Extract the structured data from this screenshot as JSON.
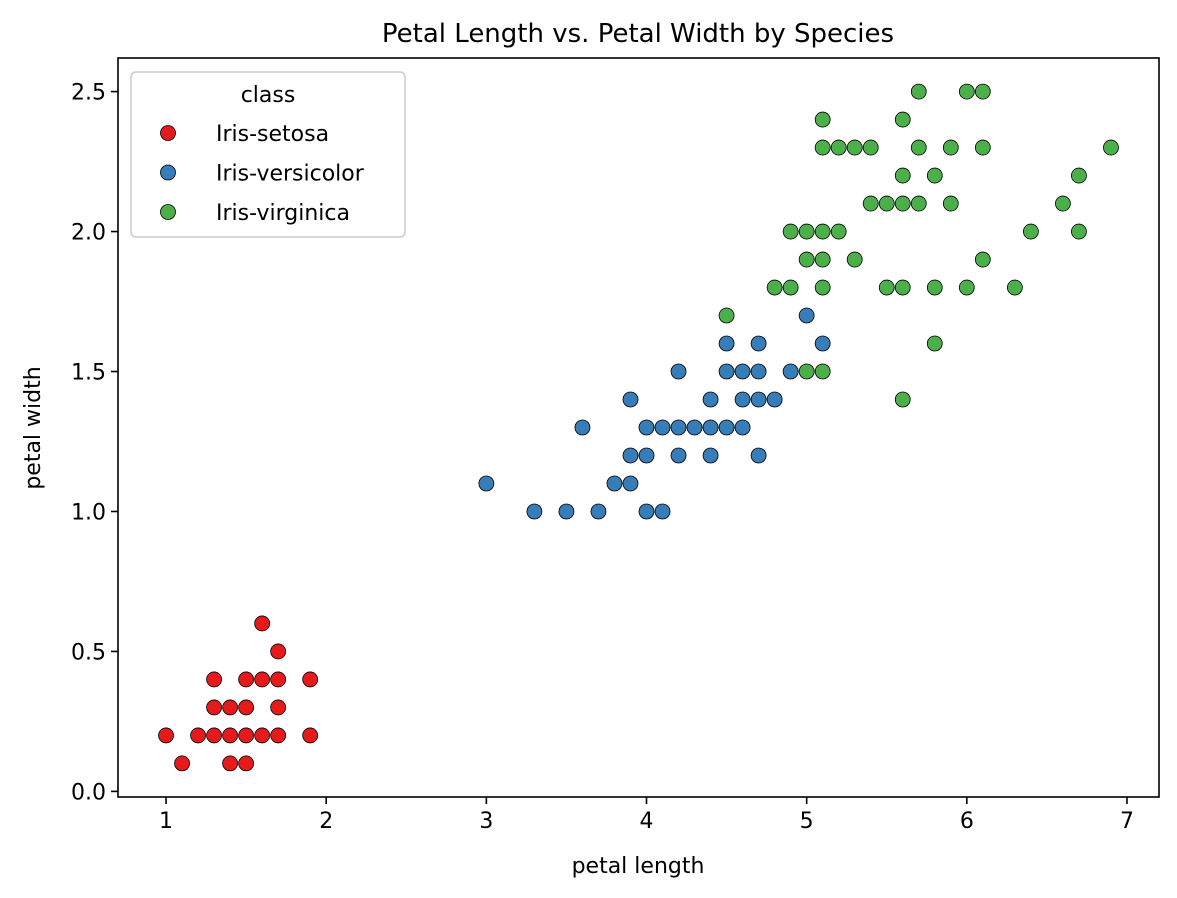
{
  "chart_data": {
    "type": "scatter",
    "title": "Petal Length vs. Petal Width by Species",
    "xlabel": "petal length",
    "ylabel": "petal width",
    "xlim": [
      0.7,
      7.2
    ],
    "ylim": [
      -0.02,
      2.62
    ],
    "xticks": [
      1,
      2,
      3,
      4,
      5,
      6,
      7
    ],
    "xtick_labels": [
      "1",
      "2",
      "3",
      "4",
      "5",
      "6",
      "7"
    ],
    "yticks": [
      0.0,
      0.5,
      1.0,
      1.5,
      2.0,
      2.5
    ],
    "ytick_labels": [
      "0.0",
      "0.5",
      "1.0",
      "1.5",
      "2.0",
      "2.5"
    ],
    "grid": false,
    "legend": {
      "title": "class",
      "placement": "top-left"
    },
    "series": [
      {
        "name": "Iris-setosa",
        "color": "#e41a1c",
        "points": [
          [
            1.0,
            0.2
          ],
          [
            1.1,
            0.1
          ],
          [
            1.2,
            0.2
          ],
          [
            1.3,
            0.2
          ],
          [
            1.3,
            0.3
          ],
          [
            1.3,
            0.4
          ],
          [
            1.4,
            0.1
          ],
          [
            1.4,
            0.2
          ],
          [
            1.4,
            0.3
          ],
          [
            1.5,
            0.1
          ],
          [
            1.5,
            0.2
          ],
          [
            1.5,
            0.3
          ],
          [
            1.5,
            0.4
          ],
          [
            1.6,
            0.2
          ],
          [
            1.6,
            0.4
          ],
          [
            1.6,
            0.6
          ],
          [
            1.7,
            0.2
          ],
          [
            1.7,
            0.3
          ],
          [
            1.7,
            0.4
          ],
          [
            1.7,
            0.5
          ],
          [
            1.9,
            0.2
          ],
          [
            1.9,
            0.4
          ]
        ]
      },
      {
        "name": "Iris-versicolor",
        "color": "#377eb8",
        "points": [
          [
            3.0,
            1.1
          ],
          [
            3.3,
            1.0
          ],
          [
            3.5,
            1.0
          ],
          [
            3.6,
            1.3
          ],
          [
            3.7,
            1.0
          ],
          [
            3.8,
            1.1
          ],
          [
            3.9,
            1.1
          ],
          [
            3.9,
            1.2
          ],
          [
            3.9,
            1.4
          ],
          [
            4.0,
            1.0
          ],
          [
            4.0,
            1.2
          ],
          [
            4.0,
            1.3
          ],
          [
            4.1,
            1.0
          ],
          [
            4.1,
            1.3
          ],
          [
            4.2,
            1.2
          ],
          [
            4.2,
            1.3
          ],
          [
            4.2,
            1.5
          ],
          [
            4.3,
            1.3
          ],
          [
            4.4,
            1.2
          ],
          [
            4.4,
            1.3
          ],
          [
            4.4,
            1.4
          ],
          [
            4.5,
            1.3
          ],
          [
            4.5,
            1.5
          ],
          [
            4.5,
            1.6
          ],
          [
            4.6,
            1.3
          ],
          [
            4.6,
            1.4
          ],
          [
            4.6,
            1.5
          ],
          [
            4.7,
            1.2
          ],
          [
            4.7,
            1.4
          ],
          [
            4.7,
            1.5
          ],
          [
            4.7,
            1.6
          ],
          [
            4.8,
            1.4
          ],
          [
            4.9,
            1.5
          ],
          [
            5.0,
            1.7
          ],
          [
            5.1,
            1.6
          ]
        ]
      },
      {
        "name": "Iris-virginica",
        "color": "#4daf4a",
        "points": [
          [
            4.5,
            1.7
          ],
          [
            4.8,
            1.8
          ],
          [
            4.9,
            1.8
          ],
          [
            4.9,
            2.0
          ],
          [
            5.0,
            1.5
          ],
          [
            5.0,
            1.9
          ],
          [
            5.0,
            2.0
          ],
          [
            5.1,
            1.5
          ],
          [
            5.1,
            1.8
          ],
          [
            5.1,
            1.9
          ],
          [
            5.1,
            2.0
          ],
          [
            5.1,
            2.3
          ],
          [
            5.1,
            2.4
          ],
          [
            5.2,
            2.0
          ],
          [
            5.2,
            2.3
          ],
          [
            5.3,
            1.9
          ],
          [
            5.3,
            2.3
          ],
          [
            5.4,
            2.1
          ],
          [
            5.4,
            2.3
          ],
          [
            5.5,
            1.8
          ],
          [
            5.5,
            2.1
          ],
          [
            5.6,
            1.4
          ],
          [
            5.6,
            1.8
          ],
          [
            5.6,
            2.1
          ],
          [
            5.6,
            2.2
          ],
          [
            5.6,
            2.4
          ],
          [
            5.7,
            2.1
          ],
          [
            5.7,
            2.3
          ],
          [
            5.7,
            2.5
          ],
          [
            5.8,
            1.6
          ],
          [
            5.8,
            1.8
          ],
          [
            5.8,
            2.2
          ],
          [
            5.9,
            2.1
          ],
          [
            5.9,
            2.3
          ],
          [
            6.0,
            1.8
          ],
          [
            6.0,
            2.5
          ],
          [
            6.1,
            1.9
          ],
          [
            6.1,
            2.3
          ],
          [
            6.1,
            2.5
          ],
          [
            6.3,
            1.8
          ],
          [
            6.4,
            2.0
          ],
          [
            6.6,
            2.1
          ],
          [
            6.7,
            2.0
          ],
          [
            6.7,
            2.2
          ],
          [
            6.9,
            2.3
          ]
        ]
      }
    ]
  }
}
